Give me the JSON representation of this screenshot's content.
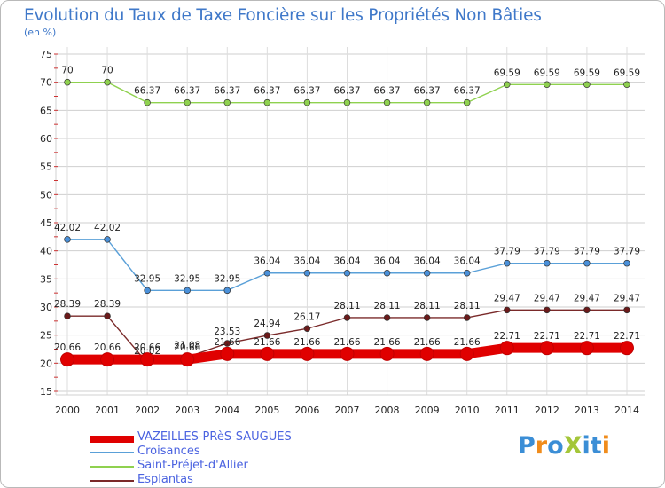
{
  "title": "Evolution du Taux de Taxe Foncière sur les Propriétés Non Bâties",
  "unit_label": "(en %)",
  "logo": {
    "text": "ProXiti",
    "colors": [
      "#3b8ed6",
      "#f08c1c",
      "#3b8ed6",
      "#a4c639",
      "#3b8ed6",
      "#3b8ed6",
      "#f08c1c"
    ]
  },
  "chart_data": {
    "type": "line",
    "title": "Evolution du Taux de Taxe Foncière sur les Propriétés Non Bâties",
    "ylabel": "(en %)",
    "ylim": [
      15,
      75
    ],
    "yticks": [
      15,
      20,
      25,
      30,
      35,
      40,
      45,
      50,
      55,
      60,
      65,
      70,
      75
    ],
    "grid": true,
    "x": [
      "2000",
      "2001",
      "2002",
      "2003",
      "2004",
      "2005",
      "2006",
      "2007",
      "2008",
      "2009",
      "2010",
      "2011",
      "2012",
      "2013",
      "2014"
    ],
    "series": [
      {
        "name": "Saint-Préjet-d'Allier",
        "color": "#8fd14f",
        "line": "#8fd14f",
        "values": [
          70,
          70,
          66.37,
          66.37,
          66.37,
          66.37,
          66.37,
          66.37,
          66.37,
          66.37,
          66.37,
          69.59,
          69.59,
          69.59,
          69.59
        ],
        "labels": [
          "70",
          "70",
          "66.37",
          "66.37",
          "66.37",
          "66.37",
          "66.37",
          "66.37",
          "66.37",
          "66.37",
          "66.37",
          "69.59",
          "69.59",
          "69.59",
          "69.59"
        ]
      },
      {
        "name": "Croisances",
        "color": "#4a90d9",
        "line": "#5aa0d8",
        "values": [
          42.02,
          42.02,
          32.95,
          32.95,
          32.95,
          36.04,
          36.04,
          36.04,
          36.04,
          36.04,
          36.04,
          37.79,
          37.79,
          37.79,
          37.79
        ],
        "labels": [
          "42.02",
          "42.02",
          "32.95",
          "32.95",
          "32.95",
          "36.04",
          "36.04",
          "36.04",
          "36.04",
          "36.04",
          "36.04",
          "37.79",
          "37.79",
          "37.79",
          "37.79"
        ]
      },
      {
        "name": "Esplantas",
        "color": "#6b1a1a",
        "line": "#7a2a2a",
        "values": [
          28.39,
          28.39,
          20.02,
          21.08,
          23.53,
          24.94,
          26.17,
          28.11,
          28.11,
          28.11,
          28.11,
          29.47,
          29.47,
          29.47,
          29.47
        ],
        "labels": [
          "28.39",
          "28.39",
          "20.02",
          "21.08",
          "23.53",
          "24.94",
          "26.17",
          "28.11",
          "28.11",
          "28.11",
          "28.11",
          "29.47",
          "29.47",
          "29.47",
          "29.47"
        ]
      },
      {
        "name": "VAZEILLES-PRèS-SAUGUES",
        "color": "#e00000",
        "line": "#e00000",
        "values": [
          20.66,
          20.66,
          20.66,
          20.66,
          21.66,
          21.66,
          21.66,
          21.66,
          21.66,
          21.66,
          21.66,
          22.71,
          22.71,
          22.71,
          22.71
        ],
        "labels": [
          "20.66",
          "20.66",
          "20.66",
          "20.66",
          "21.66",
          "21.66",
          "21.66",
          "21.66",
          "21.66",
          "21.66",
          "21.66",
          "22.71",
          "22.71",
          "22.71",
          "22.71"
        ]
      }
    ],
    "legend": [
      {
        "name": "VAZEILLES-PRèS-SAUGUES",
        "color": "#e00000"
      },
      {
        "name": "Croisances",
        "color": "#5aa0d8"
      },
      {
        "name": "Saint-Préjet-d'Allier",
        "color": "#8fd14f"
      },
      {
        "name": "Esplantas",
        "color": "#7a2a2a"
      }
    ]
  }
}
